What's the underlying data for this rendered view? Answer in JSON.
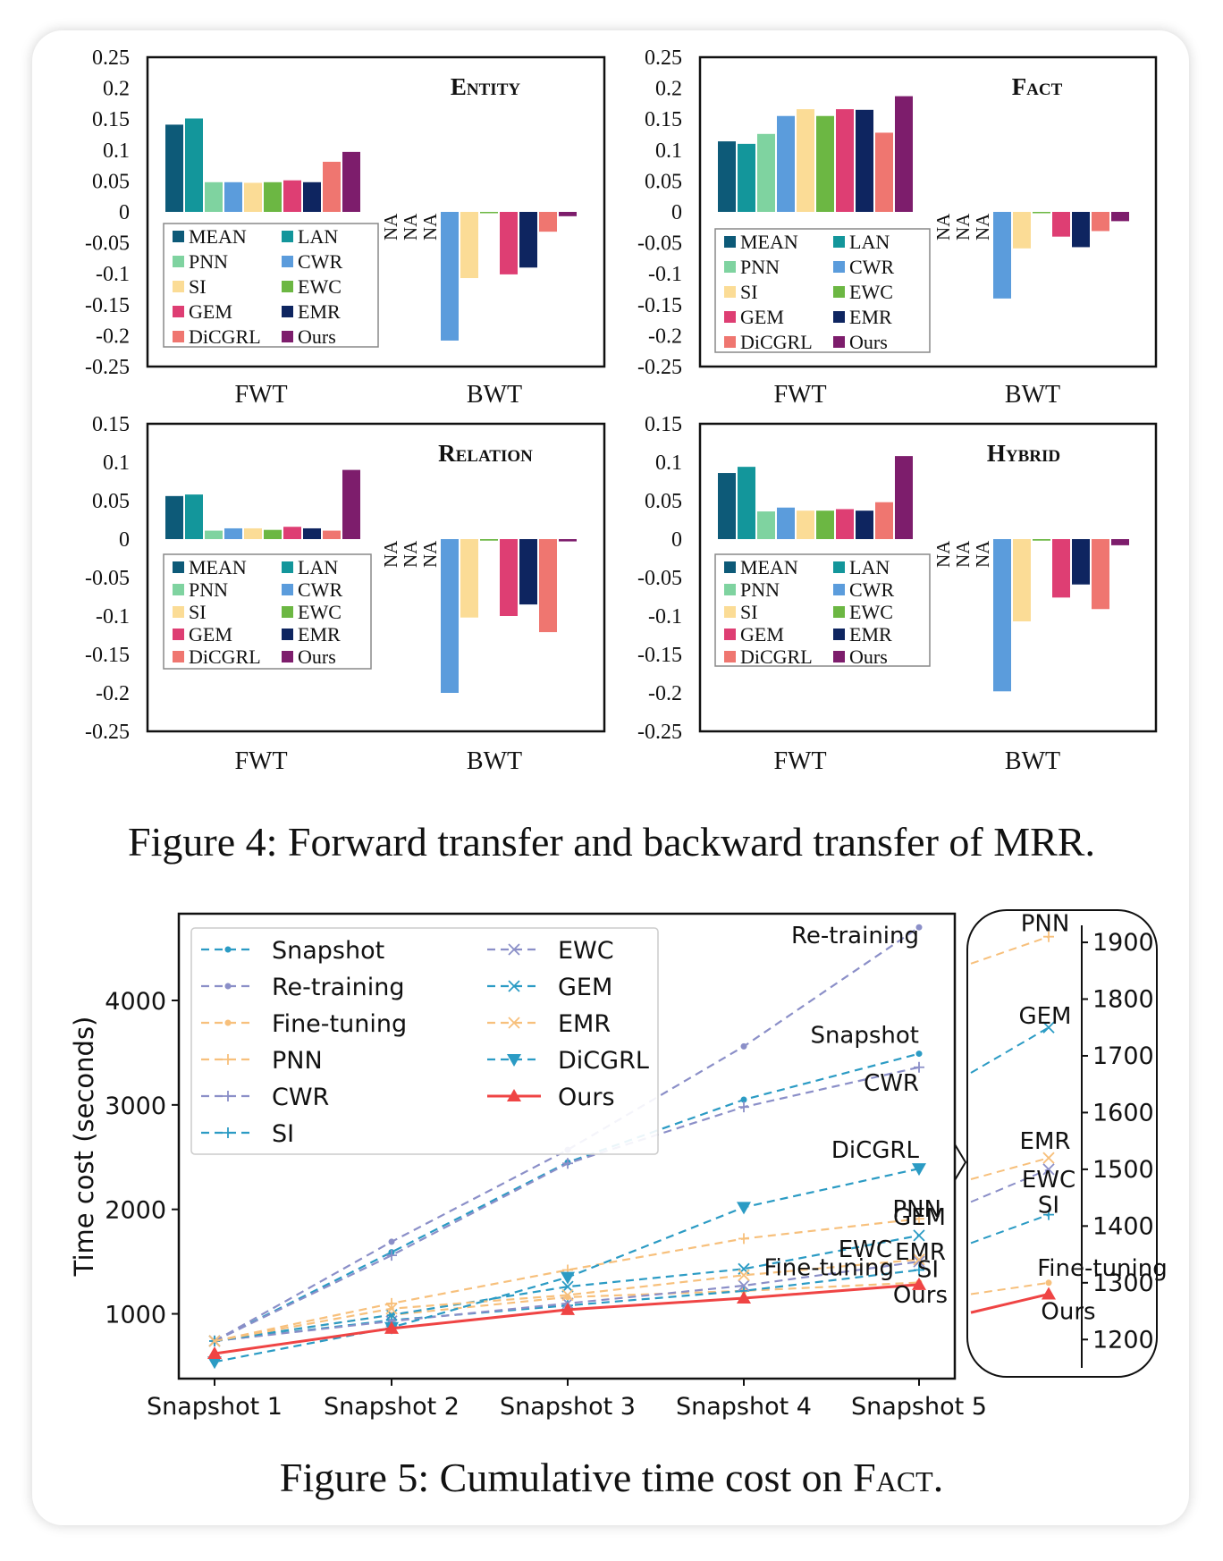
{
  "figure4": {
    "caption": "Figure 4: Forward transfer and backward transfer of MRR.",
    "colors": {
      "MEAN": "#0d5a78",
      "LAN": "#13969b",
      "PNN": "#7fd3a0",
      "CWR": "#5b9cdc",
      "SI": "#fbdc96",
      "EWC": "#6cb743",
      "GEM": "#de3e73",
      "EMR": "#0e2560",
      "DiCGRL": "#ef7670",
      "Ours": "#7d1d6c"
    },
    "legend_order": [
      "MEAN",
      "LAN",
      "PNN",
      "CWR",
      "SI",
      "EWC",
      "GEM",
      "EMR",
      "DiCGRL",
      "Ours"
    ],
    "fwt_order": [
      "MEAN",
      "LAN",
      "PNN",
      "CWR",
      "SI",
      "EWC",
      "GEM",
      "EMR",
      "DiCGRL",
      "Ours"
    ],
    "bwt_order": [
      "MEAN",
      "LAN",
      "PNN",
      "CWR",
      "SI",
      "EWC",
      "GEM",
      "EMR",
      "DiCGRL",
      "Ours"
    ],
    "na_label": "NA",
    "x_labels": [
      "FWT",
      "BWT"
    ]
  },
  "chart_data": [
    {
      "type": "bar",
      "title": "Entity",
      "yticks": [
        "0.25",
        "0.2",
        "0.15",
        "0.1",
        "0.05",
        "0",
        "-0.05",
        "-0.1",
        "-0.15",
        "-0.2",
        "-0.25"
      ],
      "ylim": [
        -0.25,
        0.25
      ],
      "categories": [
        "FWT",
        "BWT"
      ],
      "series": {
        "MEAN": [
          0.141,
          null
        ],
        "LAN": [
          0.151,
          null
        ],
        "PNN": [
          0.048,
          null
        ],
        "CWR": [
          0.048,
          -0.208
        ],
        "SI": [
          0.047,
          -0.107
        ],
        "EWC": [
          0.048,
          -0.002
        ],
        "GEM": [
          0.051,
          -0.101
        ],
        "EMR": [
          0.048,
          -0.09
        ],
        "DiCGRL": [
          0.081,
          -0.032
        ],
        "Ours": [
          0.097,
          -0.007
        ]
      }
    },
    {
      "type": "bar",
      "title": "Fact",
      "yticks": [
        "0.25",
        "0.2",
        "0.15",
        "0.1",
        "0.05",
        "0",
        "-0.05",
        "-0.1",
        "-0.15",
        "-0.2",
        "-0.25"
      ],
      "ylim": [
        -0.25,
        0.25
      ],
      "categories": [
        "FWT",
        "BWT"
      ],
      "series": {
        "MEAN": [
          0.114,
          null
        ],
        "LAN": [
          0.11,
          null
        ],
        "PNN": [
          0.126,
          null
        ],
        "CWR": [
          0.155,
          -0.14
        ],
        "SI": [
          0.166,
          -0.059
        ],
        "EWC": [
          0.155,
          -0.002
        ],
        "GEM": [
          0.166,
          -0.04
        ],
        "EMR": [
          0.165,
          -0.057
        ],
        "DiCGRL": [
          0.128,
          -0.031
        ],
        "Ours": [
          0.187,
          -0.015
        ]
      }
    },
    {
      "type": "bar",
      "title": "Relation",
      "yticks": [
        "0.15",
        "0.1",
        "0.05",
        "0",
        "-0.05",
        "-0.1",
        "-0.15",
        "-0.2",
        "-0.25"
      ],
      "ylim": [
        -0.25,
        0.15
      ],
      "categories": [
        "FWT",
        "BWT"
      ],
      "series": {
        "MEAN": [
          0.056,
          null
        ],
        "LAN": [
          0.058,
          null
        ],
        "PNN": [
          0.011,
          null
        ],
        "CWR": [
          0.014,
          -0.2
        ],
        "SI": [
          0.014,
          -0.102
        ],
        "EWC": [
          0.012,
          -0.002
        ],
        "GEM": [
          0.016,
          -0.1
        ],
        "EMR": [
          0.014,
          -0.085
        ],
        "DiCGRL": [
          0.011,
          -0.121
        ],
        "Ours": [
          0.09,
          -0.003
        ]
      }
    },
    {
      "type": "bar",
      "title": "Hybrid",
      "yticks": [
        "0.15",
        "0.1",
        "0.05",
        "0",
        "-0.05",
        "-0.1",
        "-0.15",
        "-0.2",
        "-0.25"
      ],
      "ylim": [
        -0.25,
        0.15
      ],
      "categories": [
        "FWT",
        "BWT"
      ],
      "series": {
        "MEAN": [
          0.086,
          null
        ],
        "LAN": [
          0.094,
          null
        ],
        "PNN": [
          0.036,
          null
        ],
        "CWR": [
          0.041,
          -0.198
        ],
        "SI": [
          0.037,
          -0.107
        ],
        "EWC": [
          0.037,
          -0.002
        ],
        "GEM": [
          0.039,
          -0.076
        ],
        "EMR": [
          0.037,
          -0.059
        ],
        "DiCGRL": [
          0.048,
          -0.091
        ],
        "Ours": [
          0.108,
          -0.008
        ]
      }
    },
    {
      "type": "line",
      "caption_prefix": "Figure 5: Cumulative time cost on ",
      "caption_sc": "Fact",
      "caption_suffix": ".",
      "ylabel": "Time cost (seconds)",
      "x": [
        "Snapshot 1",
        "Snapshot 2",
        "Snapshot 3",
        "Snapshot 4",
        "Snapshot 5"
      ],
      "yticks": [
        "1000",
        "2000",
        "3000",
        "4000"
      ],
      "ylim": [
        380,
        4830
      ],
      "inset_yticks": [
        "1200",
        "1300",
        "1400",
        "1500",
        "1600",
        "1700",
        "1800",
        "1900"
      ],
      "inset_ylim": [
        1150,
        1930
      ],
      "series": [
        {
          "name": "Snapshot",
          "color": "#2b9bc4",
          "marker": "dot",
          "values": [
            740,
            1590,
            2450,
            3050,
            3490
          ]
        },
        {
          "name": "Re-training",
          "color": "#8b8fc8",
          "marker": "dot",
          "values": [
            740,
            1690,
            2570,
            3560,
            4700
          ]
        },
        {
          "name": "Fine-tuning",
          "color": "#f7c07c",
          "marker": "dot",
          "values": [
            740,
            990,
            1160,
            1220,
            1300
          ]
        },
        {
          "name": "PNN",
          "color": "#f7c07c",
          "marker": "plus",
          "values": [
            740,
            1100,
            1420,
            1720,
            1910
          ]
        },
        {
          "name": "CWR",
          "color": "#8b8fc8",
          "marker": "plus",
          "values": [
            740,
            1560,
            2440,
            2980,
            3360
          ]
        },
        {
          "name": "SI",
          "color": "#2b9bc4",
          "marker": "plus",
          "values": [
            740,
            940,
            1080,
            1220,
            1420
          ]
        },
        {
          "name": "EWC",
          "color": "#8b8fc8",
          "marker": "x",
          "values": [
            740,
            930,
            1100,
            1270,
            1500
          ]
        },
        {
          "name": "GEM",
          "color": "#2b9bc4",
          "marker": "x",
          "values": [
            740,
            990,
            1260,
            1430,
            1750
          ]
        },
        {
          "name": "EMR",
          "color": "#f7c07c",
          "marker": "x",
          "values": [
            740,
            1050,
            1180,
            1370,
            1520
          ]
        },
        {
          "name": "DiCGRL",
          "color": "#2b9bc4",
          "marker": "tri_down",
          "values": [
            540,
            870,
            1350,
            2020,
            2390
          ]
        },
        {
          "name": "Ours",
          "color": "#ef4444",
          "marker": "tri_up",
          "solid": true,
          "values": [
            620,
            860,
            1040,
            1150,
            1280
          ]
        }
      ],
      "inset_labels": [
        "PNN",
        "GEM",
        "EMR",
        "EWC",
        "SI",
        "Fine-tuning",
        "Ours"
      ]
    }
  ]
}
